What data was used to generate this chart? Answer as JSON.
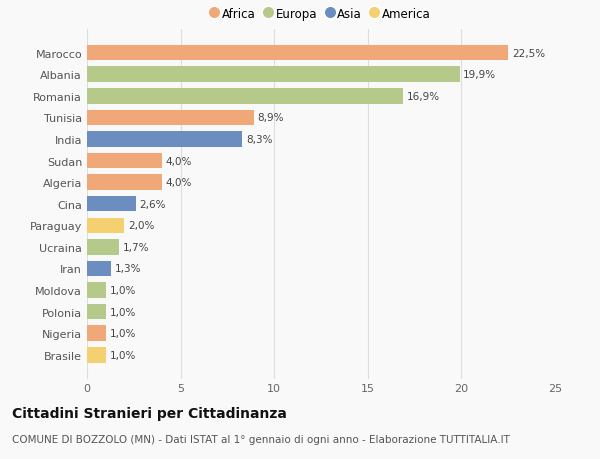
{
  "countries": [
    "Marocco",
    "Albania",
    "Romania",
    "Tunisia",
    "India",
    "Sudan",
    "Algeria",
    "Cina",
    "Paraguay",
    "Ucraina",
    "Iran",
    "Moldova",
    "Polonia",
    "Nigeria",
    "Brasile"
  ],
  "values": [
    22.5,
    19.9,
    16.9,
    8.9,
    8.3,
    4.0,
    4.0,
    2.6,
    2.0,
    1.7,
    1.3,
    1.0,
    1.0,
    1.0,
    1.0
  ],
  "labels": [
    "22,5%",
    "19,9%",
    "16,9%",
    "8,9%",
    "8,3%",
    "4,0%",
    "4,0%",
    "2,6%",
    "2,0%",
    "1,7%",
    "1,3%",
    "1,0%",
    "1,0%",
    "1,0%",
    "1,0%"
  ],
  "colors": [
    "#F0A878",
    "#B5C98A",
    "#B5C98A",
    "#F0A878",
    "#6B8DBF",
    "#F0A878",
    "#F0A878",
    "#6B8DBF",
    "#F5D070",
    "#B5C98A",
    "#6B8DBF",
    "#B5C98A",
    "#B5C98A",
    "#F0A878",
    "#F5D070"
  ],
  "legend_labels": [
    "Africa",
    "Europa",
    "Asia",
    "America"
  ],
  "legend_colors": [
    "#F0A878",
    "#B5C98A",
    "#6B8DBF",
    "#F5D070"
  ],
  "xlim": [
    0,
    25
  ],
  "xticks": [
    0,
    5,
    10,
    15,
    20,
    25
  ],
  "title": "Cittadini Stranieri per Cittadinanza",
  "subtitle": "COMUNE DI BOZZOLO (MN) - Dati ISTAT al 1° gennaio di ogni anno - Elaborazione TUTTITALIA.IT",
  "background_color": "#f9f9f9",
  "bar_height": 0.72,
  "grid_color": "#dddddd",
  "title_fontsize": 10,
  "subtitle_fontsize": 7.5,
  "label_fontsize": 7.5,
  "tick_fontsize": 8,
  "legend_fontsize": 8.5
}
